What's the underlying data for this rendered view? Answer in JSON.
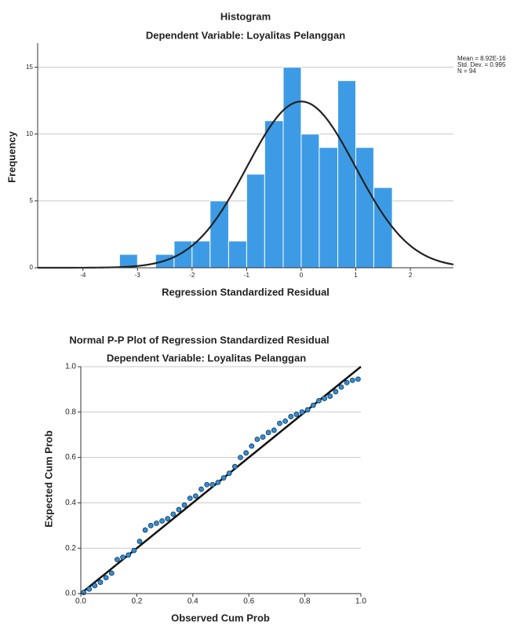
{
  "chart_data": [
    {
      "type": "histogram",
      "title": "Histogram",
      "subtitle": "Dependent Variable: Loyalitas Pelanggan",
      "x_label": "Regression Standardized Residual",
      "y_label": "Frequency",
      "bins": [
        -3.33,
        -3,
        -2.67,
        -2.33,
        -2,
        -1.67,
        -1.33,
        -1,
        -0.67,
        -0.33,
        0,
        0.33,
        0.67,
        1,
        1.33,
        1.67
      ],
      "values": [
        1,
        0,
        1,
        2,
        2,
        5,
        2,
        7,
        11,
        15,
        10,
        9,
        14,
        9,
        6
      ],
      "color": "#3d9be6",
      "normal_curve": {
        "mean": {
          "value": 8.92e-16,
          "label": "Mean = 8.92E-16"
        },
        "sd": {
          "value": 0.995,
          "label": "Std. Dev. = 0.995"
        },
        "n": {
          "value": 94,
          "label": "N = 94"
        }
      },
      "xlim": [
        -4.83,
        2.79
      ],
      "xticks": [
        -4,
        -3,
        -2,
        -1,
        0,
        1,
        2
      ],
      "ylim": [
        0,
        16.8
      ],
      "yticks": [
        0,
        5,
        10,
        15
      ],
      "grid": true
    },
    {
      "type": "scatter",
      "title": "Normal P-P Plot of Regression Standardized Residual",
      "subtitle": "Dependent Variable: Loyalitas Pelanggan",
      "x_label": "Observed Cum Prob",
      "y_label": "Expected Cum Prob",
      "color": "#2e8fd8",
      "x": [
        0.01,
        0.03,
        0.05,
        0.07,
        0.09,
        0.11,
        0.13,
        0.15,
        0.17,
        0.19,
        0.21,
        0.23,
        0.25,
        0.27,
        0.29,
        0.31,
        0.33,
        0.35,
        0.37,
        0.39,
        0.41,
        0.43,
        0.45,
        0.47,
        0.49,
        0.51,
        0.53,
        0.55,
        0.57,
        0.59,
        0.61,
        0.63,
        0.65,
        0.67,
        0.69,
        0.71,
        0.73,
        0.75,
        0.77,
        0.79,
        0.81,
        0.83,
        0.85,
        0.87,
        0.89,
        0.91,
        0.93,
        0.95,
        0.97,
        0.99
      ],
      "values": [
        0.005,
        0.02,
        0.035,
        0.05,
        0.07,
        0.09,
        0.15,
        0.16,
        0.17,
        0.19,
        0.23,
        0.28,
        0.3,
        0.31,
        0.32,
        0.33,
        0.35,
        0.37,
        0.39,
        0.42,
        0.43,
        0.46,
        0.48,
        0.48,
        0.49,
        0.51,
        0.53,
        0.56,
        0.6,
        0.62,
        0.65,
        0.68,
        0.69,
        0.71,
        0.72,
        0.75,
        0.76,
        0.78,
        0.79,
        0.8,
        0.81,
        0.83,
        0.85,
        0.86,
        0.87,
        0.89,
        0.91,
        0.93,
        0.94,
        0.945
      ],
      "xlim": [
        0,
        1
      ],
      "xticks": [
        {
          "value": 0,
          "label": "0.0"
        },
        {
          "value": 0.2,
          "label": "0.2"
        },
        {
          "value": 0.4,
          "label": "0.4"
        },
        {
          "value": 0.6,
          "label": "0.6"
        },
        {
          "value": 0.8,
          "label": "0.8"
        },
        {
          "value": 1,
          "label": "1.0"
        }
      ],
      "ylim": [
        0,
        1
      ],
      "yticks": [
        {
          "value": 0,
          "label": "0.0"
        },
        {
          "value": 0.2,
          "label": "0.2"
        },
        {
          "value": 0.4,
          "label": "0.4"
        },
        {
          "value": 0.6,
          "label": "0.6"
        },
        {
          "value": 0.8,
          "label": "0.8"
        },
        {
          "value": 1,
          "label": "1.0"
        }
      ],
      "grid": true
    }
  ]
}
